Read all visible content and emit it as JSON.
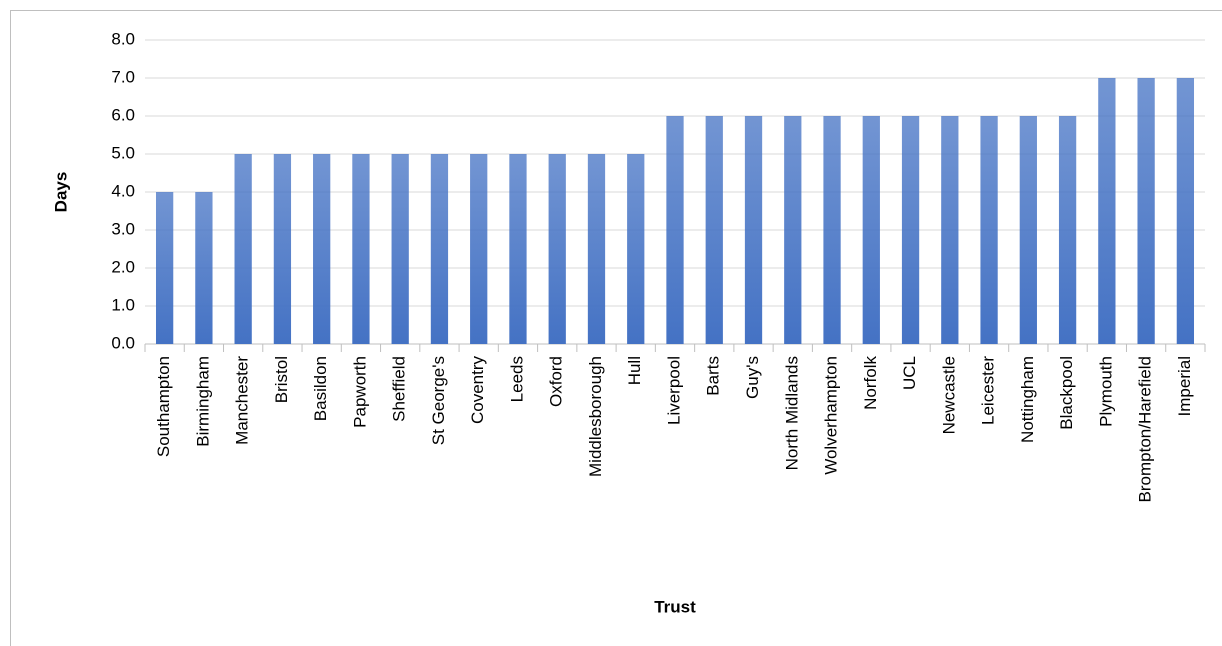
{
  "chart_data": {
    "type": "bar",
    "x_label": "Trust",
    "y_label": "Days",
    "categories": [
      "Southampton",
      "Birmingham",
      "Manchester",
      "Bristol",
      "Basildon",
      "Papworth",
      "Sheffield",
      "St George's",
      "Coventry",
      "Leeds",
      "Oxford",
      "Middlesborough",
      "Hull",
      "Liverpool",
      "Barts",
      "Guy's",
      "North Midlands",
      "Wolverhampton",
      "Norfolk",
      "UCL",
      "Newcastle",
      "Leicester",
      "Nottingham",
      "Blackpool",
      "Plymouth",
      "Brompton/Harefield",
      "Imperial"
    ],
    "values": [
      4,
      4,
      5,
      5,
      5,
      5,
      5,
      5,
      5,
      5,
      5,
      5,
      5,
      6,
      6,
      6,
      6,
      6,
      6,
      6,
      6,
      6,
      6,
      6,
      7,
      7,
      7
    ],
    "color": "#4472c4",
    "ylim": [
      0,
      8
    ],
    "yticks": [
      {
        "value": 0,
        "label": "0.0"
      },
      {
        "value": 1,
        "label": "1.0"
      },
      {
        "value": 2,
        "label": "2.0"
      },
      {
        "value": 3,
        "label": "3.0"
      },
      {
        "value": 4,
        "label": "4.0"
      },
      {
        "value": 5,
        "label": "5.0"
      },
      {
        "value": 6,
        "label": "6.0"
      },
      {
        "value": 7,
        "label": "7.0"
      },
      {
        "value": 8,
        "label": "8.0"
      }
    ],
    "grid": true
  }
}
